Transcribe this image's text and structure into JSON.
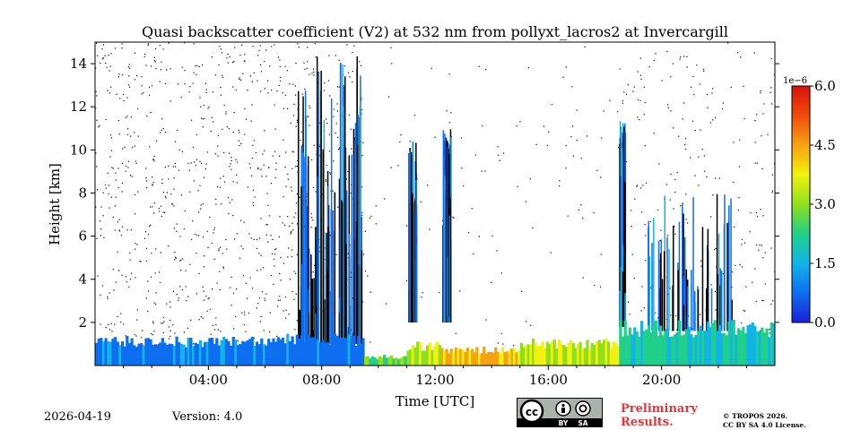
{
  "chart_data": {
    "type": "heatmap",
    "title": "Quasi backscatter coefficient (V2) at 532 nm from pollyxt_lacros2 at Invercargill",
    "xlabel": "Time [UTC]",
    "ylabel": "Height [km]",
    "xlim_hours": [
      0,
      24
    ],
    "ylim_km": [
      0,
      15
    ],
    "x_ticks": [
      {
        "value": 4,
        "label": "04:00"
      },
      {
        "value": 8,
        "label": "08:00"
      },
      {
        "value": 12,
        "label": "12:00"
      },
      {
        "value": 16,
        "label": "16:00"
      },
      {
        "value": 20,
        "label": "20:00"
      }
    ],
    "y_ticks": [
      {
        "value": 2,
        "label": "2"
      },
      {
        "value": 4,
        "label": "4"
      },
      {
        "value": 6,
        "label": "6"
      },
      {
        "value": 8,
        "label": "8"
      },
      {
        "value": 10,
        "label": "10"
      },
      {
        "value": 12,
        "label": "12"
      },
      {
        "value": 14,
        "label": "14"
      }
    ],
    "colorbar": {
      "min": 0.0,
      "max": 6.0,
      "scale_label": "1e−6",
      "ticks": [
        {
          "value": 0.0,
          "label": "0.0"
        },
        {
          "value": 1.5,
          "label": "1.5"
        },
        {
          "value": 3.0,
          "label": "3.0"
        },
        {
          "value": 4.5,
          "label": "4.5"
        },
        {
          "value": 6.0,
          "label": "6.0"
        }
      ],
      "colormap": "jet",
      "colormap_stops": [
        "#1a1fd8",
        "#0d6ef0",
        "#12b4e8",
        "#20d08a",
        "#8ee01c",
        "#f2f20e",
        "#f6a311",
        "#f04c0a",
        "#d8120a"
      ]
    },
    "boundary_layer": [
      {
        "t0": 0.0,
        "t1": 6.0,
        "top_km": 1.1,
        "level": 0.9
      },
      {
        "t0": 6.0,
        "t1": 9.5,
        "top_km": 1.2,
        "level": 0.8
      },
      {
        "t0": 9.5,
        "t1": 11.0,
        "top_km": 0.4,
        "level": 2.5
      },
      {
        "t0": 11.0,
        "t1": 12.2,
        "top_km": 0.9,
        "level": 3.2
      },
      {
        "t0": 12.2,
        "t1": 15.0,
        "top_km": 0.7,
        "level": 4.2
      },
      {
        "t0": 15.0,
        "t1": 18.5,
        "top_km": 1.0,
        "level": 3.4
      },
      {
        "t0": 18.5,
        "t1": 24.0,
        "top_km": 1.7,
        "level": 1.9
      }
    ],
    "cloud_columns": [
      {
        "t_center": 7.8,
        "width_h": 1.3,
        "top_km": 14.5,
        "bottom_km": 1.0,
        "level": 0.6
      },
      {
        "t_center": 9.0,
        "width_h": 0.8,
        "top_km": 14.5,
        "bottom_km": 1.0,
        "level": 0.7
      },
      {
        "t_center": 11.2,
        "width_h": 0.3,
        "top_km": 10.5,
        "bottom_km": 2.0,
        "level": 0.7
      },
      {
        "t_center": 12.4,
        "width_h": 0.3,
        "top_km": 11.0,
        "bottom_km": 2.0,
        "level": 0.8
      },
      {
        "t_center": 18.6,
        "width_h": 0.2,
        "top_km": 11.5,
        "bottom_km": 1.8,
        "level": 0.9
      },
      {
        "t_center": 21.0,
        "width_h": 3.0,
        "top_km": 8.0,
        "bottom_km": 1.6,
        "level": 0.6
      }
    ],
    "background_noise": "scattered low-SNR dots above boundary layer, denser 00:00–09:30"
  },
  "footer": {
    "date": "2026-04-19",
    "version": "Version: 4.0",
    "preliminary_line1": "Preliminary",
    "preliminary_line2": "Results.",
    "copyright_line1": "© TROPOS 2026.",
    "copyright_line2": "CC BY SA 4.0 License.",
    "license_badge": {
      "cc": "cc",
      "by": "BY",
      "sa": "SA"
    }
  }
}
